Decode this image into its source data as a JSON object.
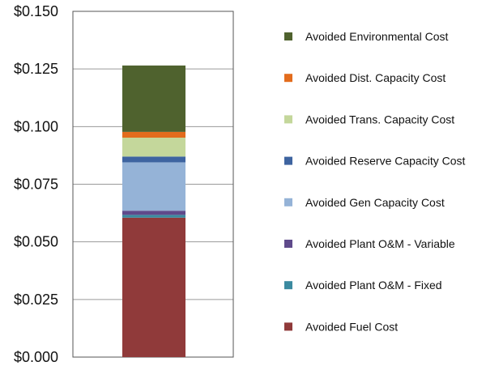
{
  "chart_data": {
    "type": "bar",
    "stacked": true,
    "categories": [
      ""
    ],
    "y_axis": {
      "ylim": [
        0,
        0.15
      ],
      "ticks": [
        0.0,
        0.025,
        0.05,
        0.075,
        0.1,
        0.125,
        0.15
      ],
      "tick_labels": [
        "$0.000",
        "$0.025",
        "$0.050",
        "$0.075",
        "$0.100",
        "$0.125",
        "$0.150"
      ]
    },
    "grid": true,
    "legend_position": "right",
    "series": [
      {
        "name": "Avoided Fuel Cost",
        "values": [
          0.0605
        ],
        "color": "#903a3a"
      },
      {
        "name": "Avoided Plant O&M - Fixed",
        "values": [
          0.0012
        ],
        "color": "#3b8aa0"
      },
      {
        "name": "Avoided Plant O&M - Variable",
        "values": [
          0.0018
        ],
        "color": "#5f4a8b"
      },
      {
        "name": "Avoided Gen Capacity Cost",
        "values": [
          0.021
        ],
        "color": "#95b3d7"
      },
      {
        "name": "Avoided Reserve Capacity Cost",
        "values": [
          0.0025
        ],
        "color": "#3e64a0"
      },
      {
        "name": "Avoided Trans. Capacity Cost",
        "values": [
          0.0082
        ],
        "color": "#c4d79b"
      },
      {
        "name": "Avoided Dist. Capacity Cost",
        "values": [
          0.0025
        ],
        "color": "#e36c1d"
      },
      {
        "name": "Avoided Environmental Cost",
        "values": [
          0.0288
        ],
        "color": "#4f622e"
      }
    ]
  }
}
